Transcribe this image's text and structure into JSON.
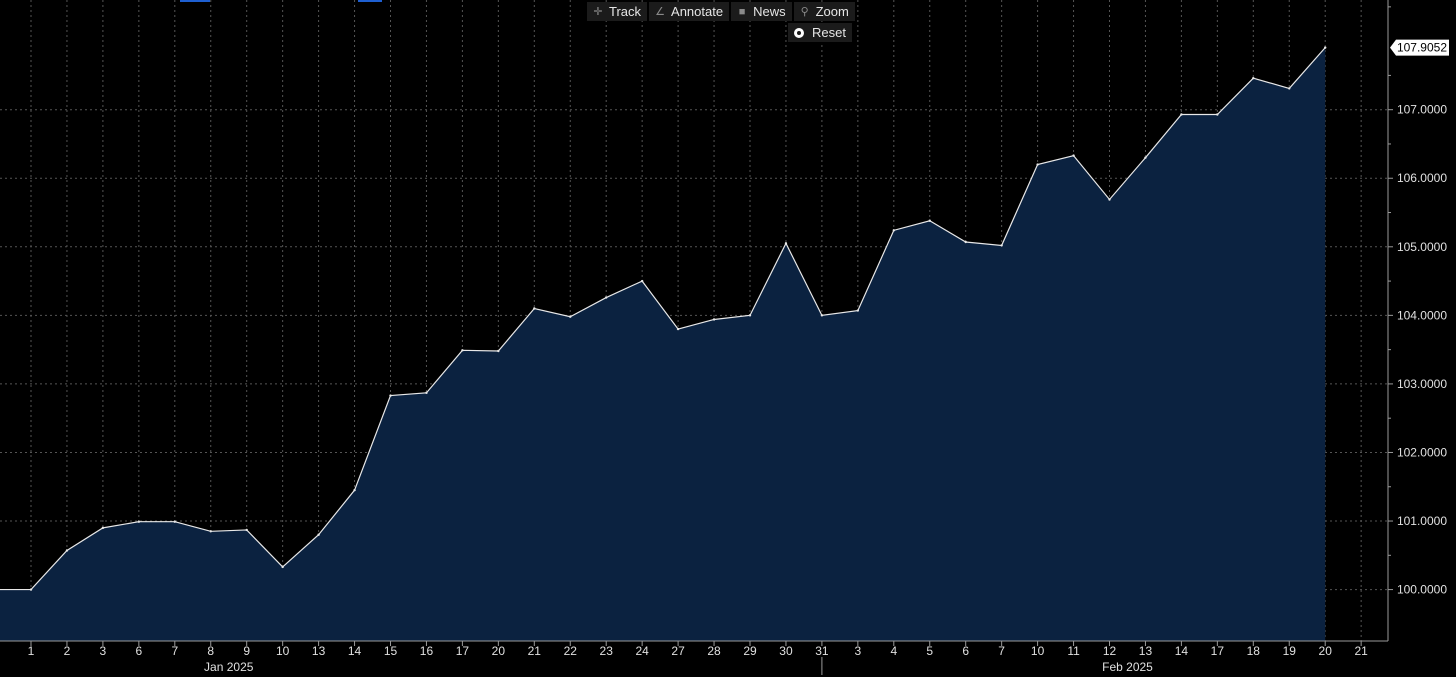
{
  "toolbar": {
    "track_label": "Track",
    "annotate_label": "Annotate",
    "news_label": "News",
    "zoom_label": "Zoom",
    "reset_label": "Reset"
  },
  "colors": {
    "background": "#000000",
    "area_fill": "#0b2240",
    "line": "#e8e8e8",
    "grid": "#555555",
    "axis_text": "#e0e0e0",
    "last_value_box": "#ffffff",
    "accent": "#1e5fd0"
  },
  "chart_data": {
    "type": "area",
    "x": [
      "1",
      "2",
      "3",
      "6",
      "7",
      "8",
      "9",
      "10",
      "13",
      "14",
      "15",
      "16",
      "17",
      "20",
      "21",
      "22",
      "23",
      "24",
      "27",
      "28",
      "29",
      "30",
      "31",
      "3",
      "4",
      "5",
      "6",
      "7",
      "10",
      "11",
      "12",
      "13",
      "14",
      "17",
      "18",
      "19",
      "20"
    ],
    "x_ticks_extra": [
      "21"
    ],
    "series": [
      {
        "values": [
          100.0,
          100.57,
          100.9,
          100.99,
          100.99,
          100.85,
          100.87,
          100.33,
          100.8,
          101.45,
          102.83,
          102.87,
          103.49,
          103.48,
          104.1,
          103.98,
          104.26,
          104.5,
          103.8,
          103.94,
          104.0,
          105.05,
          104.0,
          104.07,
          105.24,
          105.38,
          105.07,
          105.02,
          106.2,
          106.33,
          105.69,
          106.3,
          106.93,
          106.93,
          107.46,
          107.31,
          107.9052
        ]
      }
    ],
    "y_ticks": [
      "100.0000",
      "101.0000",
      "102.0000",
      "103.0000",
      "104.0000",
      "105.0000",
      "106.0000",
      "107.0000"
    ],
    "ylim": [
      99.25,
      108.6
    ],
    "month_labels": [
      {
        "label": "Jan 2025",
        "at_index": 5
      },
      {
        "label": "Feb 2025",
        "at_index": 30
      }
    ],
    "last_value_label": "107.9052",
    "grid": true
  }
}
